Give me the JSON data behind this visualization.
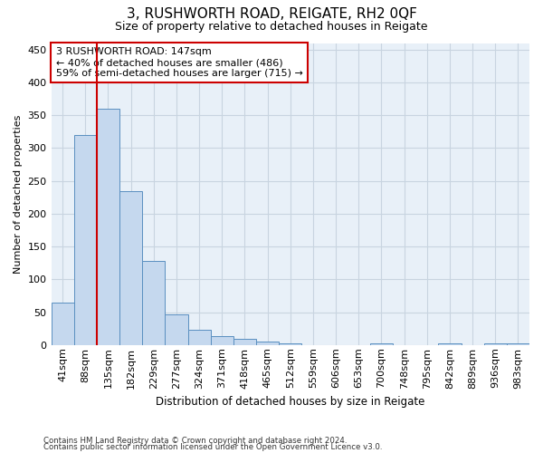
{
  "title": "3, RUSHWORTH ROAD, REIGATE, RH2 0QF",
  "subtitle": "Size of property relative to detached houses in Reigate",
  "xlabel": "Distribution of detached houses by size in Reigate",
  "ylabel": "Number of detached properties",
  "footer1": "Contains HM Land Registry data © Crown copyright and database right 2024.",
  "footer2": "Contains public sector information licensed under the Open Government Licence v3.0.",
  "bin_labels": [
    "41sqm",
    "88sqm",
    "135sqm",
    "182sqm",
    "229sqm",
    "277sqm",
    "324sqm",
    "371sqm",
    "418sqm",
    "465sqm",
    "512sqm",
    "559sqm",
    "606sqm",
    "653sqm",
    "700sqm",
    "748sqm",
    "795sqm",
    "842sqm",
    "889sqm",
    "936sqm",
    "983sqm"
  ],
  "bar_heights": [
    65,
    320,
    360,
    235,
    128,
    47,
    23,
    13,
    9,
    5,
    2,
    0,
    0,
    0,
    3,
    0,
    0,
    2,
    0,
    3,
    2
  ],
  "n_bins": 21,
  "property_bin_index": 2,
  "annotation_line1": "3 RUSHWORTH ROAD: 147sqm",
  "annotation_line2": "← 40% of detached houses are smaller (486)",
  "annotation_line3": "59% of semi-detached houses are larger (715) →",
  "bar_color": "#c5d8ee",
  "bar_edge_color": "#5a8fc0",
  "vline_color": "#cc0000",
  "annotation_box_edge_color": "#cc0000",
  "background_color": "#ffffff",
  "grid_color": "#c8d4e0",
  "ylim": [
    0,
    460
  ],
  "yticks": [
    0,
    50,
    100,
    150,
    200,
    250,
    300,
    350,
    400,
    450
  ]
}
